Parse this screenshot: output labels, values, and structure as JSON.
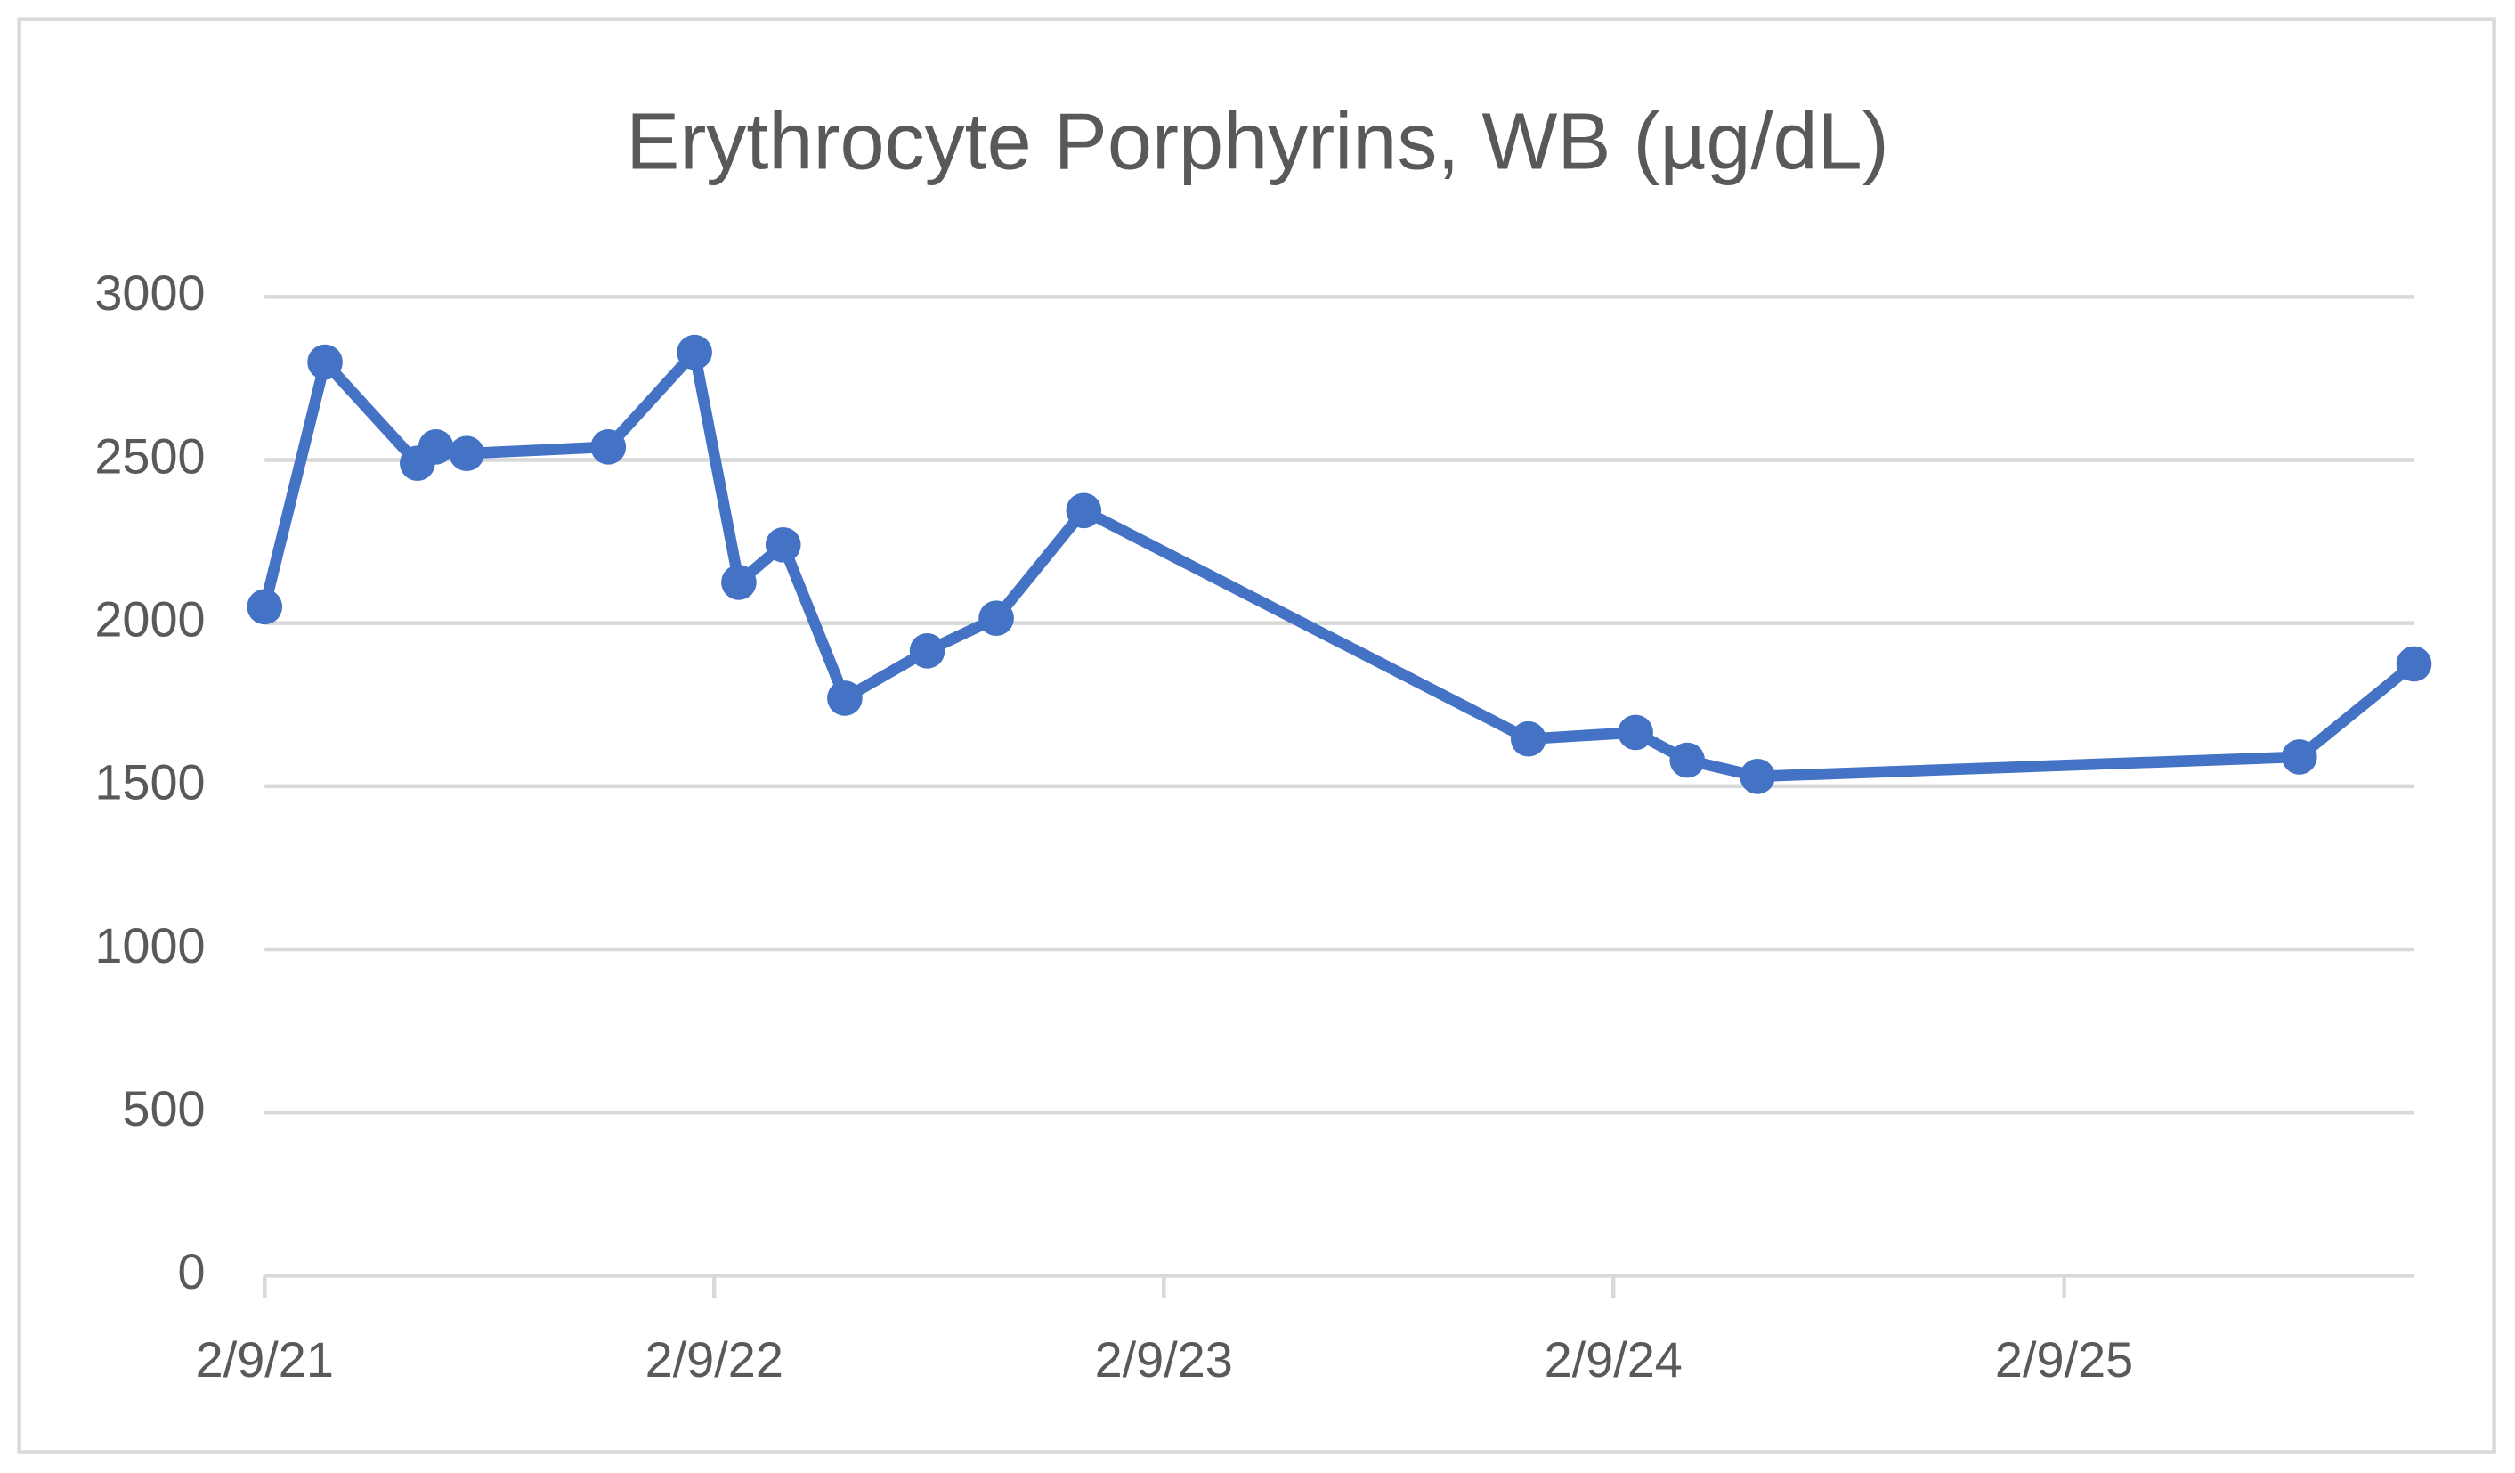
{
  "chart_data": {
    "type": "line",
    "title": "Erythrocyte Porphyrins, WB (µg/dL)",
    "x": [
      "2021-02-09",
      "2021-03-30",
      "2021-06-13",
      "2021-06-28",
      "2021-07-23",
      "2021-11-15",
      "2022-01-24",
      "2022-03-01",
      "2022-04-06",
      "2022-05-26",
      "2022-08-01",
      "2022-09-26",
      "2022-12-06",
      "2023-12-02",
      "2024-02-27",
      "2024-04-09",
      "2024-06-05",
      "2025-08-19",
      "2025-11-20"
    ],
    "series": [
      {
        "name": "Erythrocyte Porphyrins, WB",
        "color": "#4472c4",
        "values": [
          2050,
          2800,
          2490,
          2540,
          2520,
          2540,
          2830,
          2125,
          2240,
          1770,
          1915,
          2015,
          2345,
          1645,
          1665,
          1580,
          1530,
          1590,
          1875
        ]
      }
    ],
    "xlim": [
      "2021-02-09",
      "2025-11-20"
    ],
    "xticks": [
      {
        "value": "2021-02-09",
        "label": "2/9/21"
      },
      {
        "value": "2022-02-09",
        "label": "2/9/22"
      },
      {
        "value": "2023-02-09",
        "label": "2/9/23"
      },
      {
        "value": "2024-02-09",
        "label": "2/9/24"
      },
      {
        "value": "2025-02-09",
        "label": "2/9/25"
      }
    ],
    "ylim": [
      0,
      3000
    ],
    "yticks": [
      0,
      500,
      1000,
      1500,
      2000,
      2500,
      3000
    ],
    "grid": true
  }
}
